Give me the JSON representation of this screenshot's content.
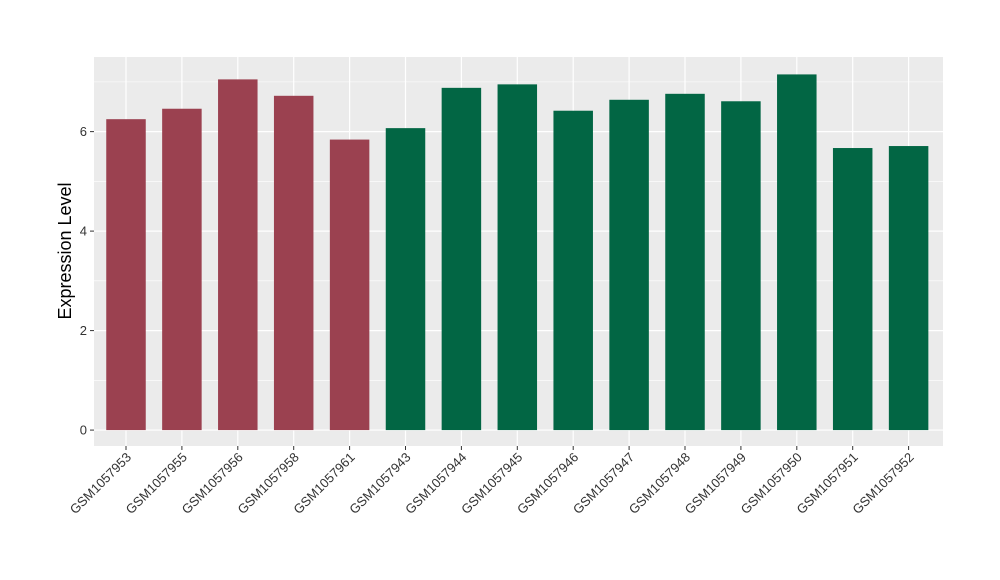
{
  "chart_data": {
    "type": "bar",
    "title": "",
    "xlabel": "",
    "ylabel": "Expression Level",
    "ylim": [
      -0.32,
      7.5
    ],
    "yticks": [
      0,
      2,
      4,
      6
    ],
    "grid": true,
    "panel_background": "#ebebeb",
    "grid_color": "#ffffff",
    "categories": [
      "GSM1057953",
      "GSM1057955",
      "GSM1057956",
      "GSM1057958",
      "GSM1057961",
      "GSM1057943",
      "GSM1057944",
      "GSM1057945",
      "GSM1057946",
      "GSM1057947",
      "GSM1057948",
      "GSM1057949",
      "GSM1057950",
      "GSM1057951",
      "GSM1057952"
    ],
    "values": [
      6.25,
      6.46,
      7.05,
      6.72,
      5.84,
      6.07,
      6.88,
      6.95,
      6.42,
      6.64,
      6.76,
      6.61,
      7.15,
      5.67,
      5.71
    ],
    "groups": [
      0,
      0,
      0,
      0,
      0,
      1,
      1,
      1,
      1,
      1,
      1,
      1,
      1,
      1,
      1
    ],
    "group_colors": [
      "#9b4150",
      "#026644"
    ]
  }
}
